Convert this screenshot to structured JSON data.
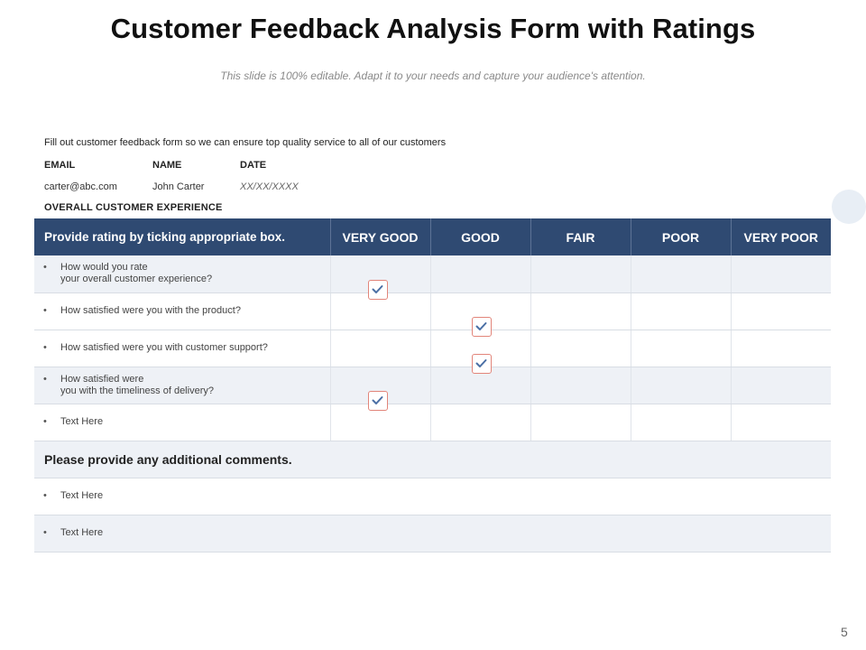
{
  "slide": {
    "title": "Customer Feedback Analysis Form with Ratings",
    "subtitle": "This slide is 100% editable. Adapt it to your needs and capture your audience's attention.",
    "page_number": "5"
  },
  "form": {
    "intro": "Fill out customer feedback form so we can ensure top quality service to  all of our customers",
    "info_labels": {
      "email": "EMAIL",
      "name": "NAME",
      "date": "DATE"
    },
    "info_values": {
      "email": "carter@abc.com",
      "name": "John Carter",
      "date": "XX/XX/XXXX"
    },
    "overall_label": "OVERALL  CUSTOMER  EXPERIENCE"
  },
  "table": {
    "header_prompt": "Provide rating by ticking appropriate box.",
    "ratings": [
      "VERY GOOD",
      "GOOD",
      "FAIR",
      "POOR",
      "VERY POOR"
    ],
    "bullet": "•",
    "questions": [
      {
        "text": "How would you rate\n  your overall customer experience?",
        "rating": "VERY GOOD"
      },
      {
        "text": "How satisfied were you with the product?",
        "rating": "GOOD"
      },
      {
        "text": "How satisfied were you with customer support?",
        "rating": "GOOD"
      },
      {
        "text": "How satisfied were\n  you with the timeliness of delivery?",
        "rating": "VERY GOOD"
      },
      {
        "text": "Text Here",
        "rating": ""
      }
    ],
    "comments_label": "Please provide any additional comments.",
    "comments": [
      "Text Here",
      "Text Here"
    ]
  },
  "colors": {
    "header_bg": "#2f4a72",
    "row_shade": "#eef1f6",
    "checkbox_border": "#e2857a",
    "checkmark": "#4a6fa5"
  },
  "icons": {
    "checkbox": "checkbox-checked-icon",
    "decoration": "circle-decoration"
  }
}
